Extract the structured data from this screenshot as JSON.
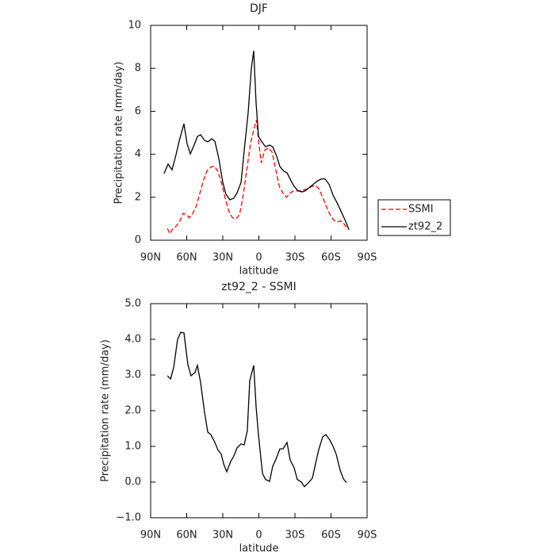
{
  "chart_data": [
    {
      "type": "line",
      "title": "DJF",
      "xlabel": "latitude",
      "ylabel": "Precipitation rate (mm/day)",
      "xlim": [
        90,
        -90
      ],
      "xticks": [
        {
          "value": 90,
          "label": "90N"
        },
        {
          "value": 60,
          "label": "60N"
        },
        {
          "value": 30,
          "label": "30N"
        },
        0,
        {
          "value": -30,
          "label": "30S"
        },
        {
          "value": -60,
          "label": "60S"
        },
        {
          "value": -90,
          "label": "90S"
        }
      ],
      "ylim": [
        0,
        10
      ],
      "yticks": [
        0,
        2,
        4,
        6,
        8,
        10
      ],
      "legend": "right",
      "series": [
        {
          "name": "SSMI",
          "color": "#ff0000",
          "linestyle": "dashed",
          "x": [
            76,
            74,
            72,
            69,
            66,
            63,
            60,
            58,
            55,
            52,
            49,
            46,
            43,
            40,
            37,
            34,
            31,
            28,
            25,
            22,
            19,
            16,
            13,
            10,
            7,
            4,
            2,
            0,
            -2,
            -5,
            -8,
            -11,
            -14,
            -17,
            -20,
            -23,
            -26,
            -29,
            -32,
            -35,
            -38,
            -41,
            -44,
            -47,
            -50,
            -53,
            -56,
            -59,
            -62,
            -65,
            -68,
            -71,
            -74
          ],
          "values": [
            0.55,
            0.3,
            0.5,
            0.65,
            0.85,
            1.25,
            1.2,
            1.05,
            1.25,
            1.6,
            2.2,
            2.8,
            3.25,
            3.4,
            3.45,
            3.2,
            2.65,
            1.95,
            1.35,
            1.05,
            1.0,
            1.2,
            2.1,
            3.3,
            4.5,
            5.2,
            5.6,
            4.5,
            3.6,
            4.2,
            4.3,
            4.1,
            3.3,
            2.5,
            2.2,
            2.0,
            2.2,
            2.3,
            2.3,
            2.3,
            2.35,
            2.4,
            2.5,
            2.55,
            2.4,
            2.0,
            1.6,
            1.2,
            0.95,
            0.85,
            0.9,
            0.75,
            0.5
          ]
        },
        {
          "name": "zt92_2",
          "color": "#000000",
          "linestyle": "solid",
          "x": [
            78.9,
            75.5,
            72.2,
            68.9,
            66.3,
            62.3,
            59.7,
            57.0,
            54.4,
            51.1,
            48.5,
            45.2,
            42.5,
            39.2,
            36.6,
            33.3,
            30.0,
            27.4,
            24.1,
            20.8,
            18.1,
            14.8,
            12.2,
            8.9,
            6.3,
            4.3,
            2.3,
            0.3,
            -3.0,
            -5.6,
            -8.9,
            -11.5,
            -14.8,
            -17.5,
            -20.8,
            -23.4,
            -26.7,
            -29.3,
            -32.6,
            -35.9,
            -38.6,
            -41.9,
            -45.2,
            -48.5,
            -51.8,
            -55.1,
            -58.4,
            -61.7,
            -65.0,
            -68.3,
            -71.6,
            -74.9
          ],
          "values": [
            3.1,
            3.54,
            3.28,
            3.98,
            4.61,
            5.42,
            4.5,
            4.02,
            4.35,
            4.83,
            4.91,
            4.65,
            4.58,
            4.72,
            4.61,
            3.8,
            2.69,
            2.14,
            1.88,
            1.96,
            2.21,
            2.69,
            4.17,
            5.94,
            7.97,
            8.82,
            6.38,
            4.83,
            4.54,
            4.35,
            4.43,
            4.35,
            3.91,
            3.43,
            3.21,
            3.14,
            2.77,
            2.51,
            2.3,
            2.25,
            2.3,
            2.45,
            2.6,
            2.75,
            2.85,
            2.85,
            2.6,
            2.1,
            1.75,
            1.35,
            0.95,
            0.5
          ]
        }
      ]
    },
    {
      "type": "line",
      "title": "zt92_2 - SSMI",
      "xlabel": "latitude",
      "ylabel": "Precipitation rate (mm/day)",
      "xlim": [
        90,
        -90
      ],
      "xticks": [
        {
          "value": 90,
          "label": "90N"
        },
        {
          "value": 60,
          "label": "60N"
        },
        {
          "value": 30,
          "label": "30N"
        },
        0,
        {
          "value": -30,
          "label": "30S"
        },
        {
          "value": -60,
          "label": "60S"
        },
        {
          "value": -90,
          "label": "90S"
        }
      ],
      "ylim": [
        -1,
        5
      ],
      "yticks": [
        {
          "value": -1,
          "label": "−1.0"
        },
        {
          "value": 0,
          "label": "0.0"
        },
        {
          "value": 1,
          "label": "1.0"
        },
        {
          "value": 2,
          "label": "2.0"
        },
        {
          "value": 3,
          "label": "3.0"
        },
        {
          "value": 4,
          "label": "4.0"
        },
        {
          "value": 5,
          "label": "5.0"
        }
      ],
      "series": [
        {
          "color": "#000000",
          "linestyle": "solid",
          "x": [
            76.1,
            73.4,
            70.8,
            67.6,
            64.9,
            62.3,
            59.0,
            56.4,
            53.1,
            51.1,
            48.5,
            45.2,
            42.5,
            39.9,
            36.6,
            33.9,
            31.3,
            29.3,
            26.7,
            23.4,
            20.8,
            18.1,
            14.8,
            12.2,
            9.6,
            7.6,
            4.3,
            2.3,
            0.3,
            -3.0,
            -5.6,
            -8.9,
            -11.5,
            -14.2,
            -17.5,
            -20.1,
            -23.4,
            -26.0,
            -29.3,
            -32.0,
            -35.3,
            -37.9,
            -41.2,
            -44.5,
            -47.1,
            -49.8,
            -53.1,
            -55.7,
            -59.0,
            -61.7,
            -64.3,
            -67.6,
            -70.3,
            -72.9
          ],
          "values": [
            2.98,
            2.89,
            3.22,
            4.0,
            4.2,
            4.18,
            3.29,
            2.98,
            3.07,
            3.27,
            2.8,
            1.96,
            1.4,
            1.33,
            1.11,
            0.89,
            0.78,
            0.51,
            0.29,
            0.58,
            0.73,
            0.96,
            1.07,
            1.04,
            1.44,
            2.84,
            3.27,
            2.11,
            1.31,
            0.24,
            0.07,
            0.02,
            0.44,
            0.64,
            0.93,
            0.93,
            1.11,
            0.62,
            0.4,
            0.07,
            0.0,
            -0.13,
            -0.02,
            0.11,
            0.51,
            0.91,
            1.27,
            1.33,
            1.18,
            1.0,
            0.78,
            0.33,
            0.09,
            -0.02
          ]
        }
      ]
    }
  ]
}
